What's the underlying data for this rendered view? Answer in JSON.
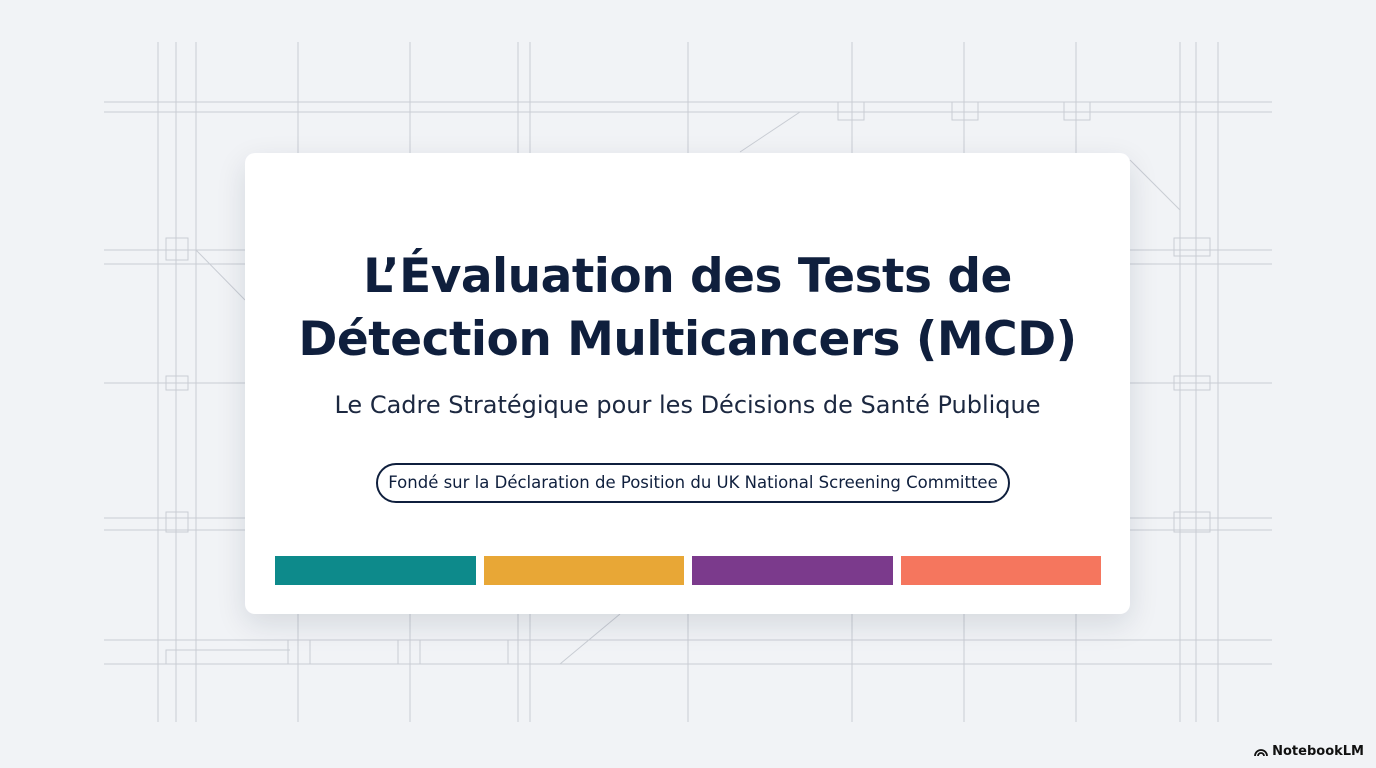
{
  "slide": {
    "title_lines": [
      "L’Évaluation des Tests de",
      "Détection Multicancers (MCD)"
    ],
    "subtitle": "Le Cadre Stratégique pour les Décisions de Santé Publique",
    "badge": "Fondé sur la Déclaration de Position du UK National Screening Committee",
    "color_bars": [
      "#0d8a8b",
      "#e8a736",
      "#7b3a8c",
      "#f5765e"
    ],
    "watermark": "NotebookLM"
  }
}
